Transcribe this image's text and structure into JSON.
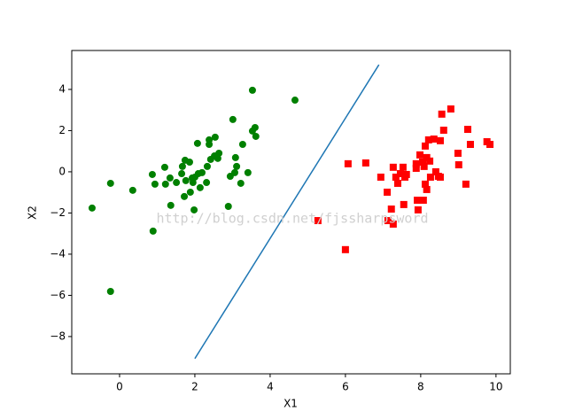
{
  "chart_data": {
    "type": "scatter",
    "xlabel": "X1",
    "ylabel": "X2",
    "annotation": "http://blog.csdn.net/fjssharpsword",
    "xlim": [
      -1.27,
      10.38
    ],
    "ylim": [
      -9.81,
      5.89
    ],
    "xticks": [
      0,
      2,
      4,
      6,
      8,
      10
    ],
    "yticks": [
      {
        "value": -8,
        "label": "−8"
      },
      {
        "value": -6,
        "label": "−6"
      },
      {
        "value": -4,
        "label": "−4"
      },
      {
        "value": -2,
        "label": "−2"
      },
      0,
      2,
      4
    ],
    "grid": false,
    "series": [
      {
        "marker": "circle",
        "color": "#008000",
        "x": [
          -0.73,
          -0.24,
          -0.24,
          0.35,
          0.89,
          0.87,
          0.94,
          1.2,
          1.22,
          1.34,
          1.36,
          1.51,
          1.65,
          1.67,
          1.74,
          1.76,
          1.72,
          1.86,
          1.88,
          1.93,
          1.95,
          2.0,
          1.98,
          2.07,
          2.09,
          2.14,
          2.19,
          2.31,
          2.33,
          2.38,
          2.38,
          2.42,
          2.52,
          2.54,
          2.61,
          2.64,
          2.89,
          2.94,
          3.01,
          3.06,
          3.11,
          3.08,
          3.22,
          3.27,
          3.41,
          3.53,
          3.53,
          3.6,
          3.62,
          4.66
        ],
        "y": [
          -1.76,
          -0.56,
          -5.81,
          -0.9,
          -2.88,
          -0.13,
          -0.6,
          0.22,
          -0.6,
          -0.3,
          -1.63,
          -0.52,
          -0.09,
          0.26,
          0.56,
          -0.43,
          -1.2,
          0.47,
          -0.99,
          -0.3,
          -0.52,
          -0.26,
          -1.85,
          1.38,
          -0.09,
          -0.77,
          -0.04,
          -0.52,
          0.26,
          1.33,
          1.55,
          0.6,
          0.77,
          1.68,
          0.65,
          0.9,
          -1.68,
          -0.22,
          2.54,
          -0.04,
          0.26,
          0.69,
          -0.56,
          1.33,
          -0.04,
          3.96,
          1.98,
          2.15,
          1.72,
          3.48
        ]
      },
      {
        "marker": "square",
        "color": "#ff0000",
        "x": [
          5.27,
          6.0,
          6.07,
          6.54,
          6.94,
          7.11,
          7.13,
          7.22,
          7.27,
          7.27,
          7.34,
          7.39,
          7.46,
          7.53,
          7.55,
          7.58,
          7.62,
          7.88,
          7.88,
          7.91,
          7.93,
          7.98,
          8.05,
          8.07,
          8.09,
          8.12,
          8.12,
          8.16,
          8.16,
          8.21,
          8.24,
          8.26,
          8.35,
          8.4,
          8.47,
          8.52,
          8.52,
          8.56,
          8.61,
          8.8,
          8.99,
          9.01,
          9.2,
          9.25,
          9.32,
          9.76,
          9.84
        ],
        "y": [
          -2.37,
          -3.78,
          0.39,
          0.43,
          -0.26,
          -0.99,
          -2.37,
          -1.81,
          -2.54,
          0.22,
          -0.26,
          -0.56,
          -0.09,
          0.22,
          -1.59,
          -0.26,
          -0.13,
          0.39,
          0.17,
          -1.38,
          -1.85,
          0.82,
          0.47,
          -1.38,
          0.26,
          1.25,
          -0.6,
          -0.86,
          0.69,
          1.55,
          0.52,
          -0.26,
          1.59,
          0.0,
          -0.22,
          1.51,
          -0.26,
          2.8,
          2.02,
          3.05,
          0.9,
          0.34,
          -0.6,
          2.06,
          1.33,
          1.46,
          1.33
        ]
      },
      {
        "marker": "line",
        "color": "#1f77b4",
        "x": [
          2.0,
          6.89
        ],
        "y": [
          -9.07,
          5.2
        ]
      }
    ]
  }
}
